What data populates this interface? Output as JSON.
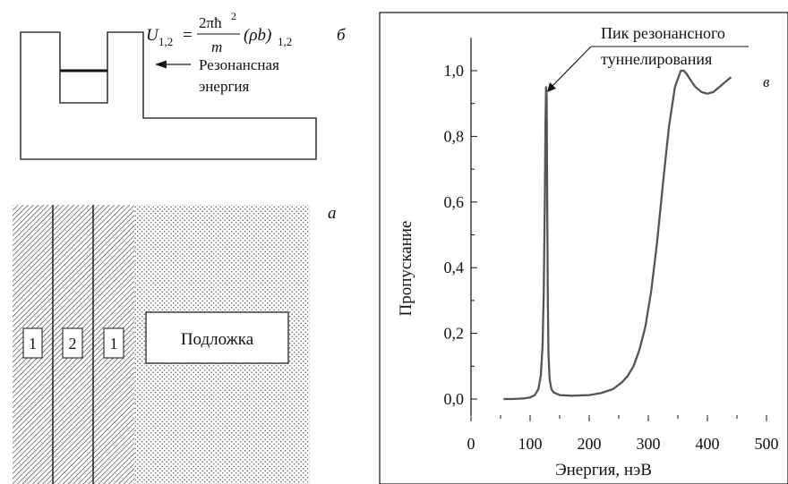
{
  "panel_b": {
    "letter": "б",
    "formula": {
      "lhs_main": "U",
      "lhs_sub": "1,2",
      "equals": "=",
      "numerator": "2πħ",
      "numerator_sup": "2",
      "denominator": "m",
      "tail": "(ρb)",
      "tail_sub": "1,2"
    },
    "annotation_line1": "Резонансная",
    "annotation_line2": "энергия"
  },
  "panel_a": {
    "letter": "а",
    "layers": [
      "1",
      "2",
      "1"
    ],
    "substrate_label": "Подложка"
  },
  "panel_c": {
    "letter": "в",
    "peak_line1": "Пик резонансного",
    "peak_line2": "туннелирования"
  },
  "chart_data": {
    "type": "line",
    "title": "",
    "xlabel": "Энергия, нэВ",
    "ylabel": "Пропускание",
    "xlim": [
      0,
      500
    ],
    "ylim": [
      -0.05,
      1.1
    ],
    "xticks": [
      0,
      100,
      200,
      300,
      400,
      500
    ],
    "xtick_labels": [
      "0",
      "100",
      "200",
      "300",
      "400",
      "500"
    ],
    "yticks": [
      0.0,
      0.2,
      0.4,
      0.6,
      0.8,
      1.0
    ],
    "ytick_labels": [
      "0,0",
      "0,2",
      "0,4",
      "0,6",
      "0,8",
      "1,0"
    ],
    "grid": false,
    "x": [
      55,
      70,
      90,
      100,
      108,
      114,
      118,
      121,
      123,
      125,
      126,
      127,
      128,
      129,
      130,
      131,
      133,
      136,
      140,
      150,
      170,
      200,
      220,
      240,
      255,
      265,
      275,
      285,
      295,
      305,
      315,
      325,
      335,
      345,
      355,
      360,
      365,
      372,
      380,
      390,
      400,
      410,
      420,
      430,
      440
    ],
    "y": [
      0.0,
      0.0,
      0.002,
      0.005,
      0.012,
      0.03,
      0.07,
      0.16,
      0.32,
      0.62,
      0.85,
      0.95,
      0.92,
      0.6,
      0.3,
      0.14,
      0.06,
      0.03,
      0.02,
      0.012,
      0.01,
      0.012,
      0.018,
      0.03,
      0.05,
      0.07,
      0.1,
      0.15,
      0.22,
      0.33,
      0.48,
      0.66,
      0.83,
      0.95,
      1.0,
      1.0,
      0.99,
      0.97,
      0.95,
      0.935,
      0.93,
      0.935,
      0.95,
      0.965,
      0.98
    ]
  }
}
